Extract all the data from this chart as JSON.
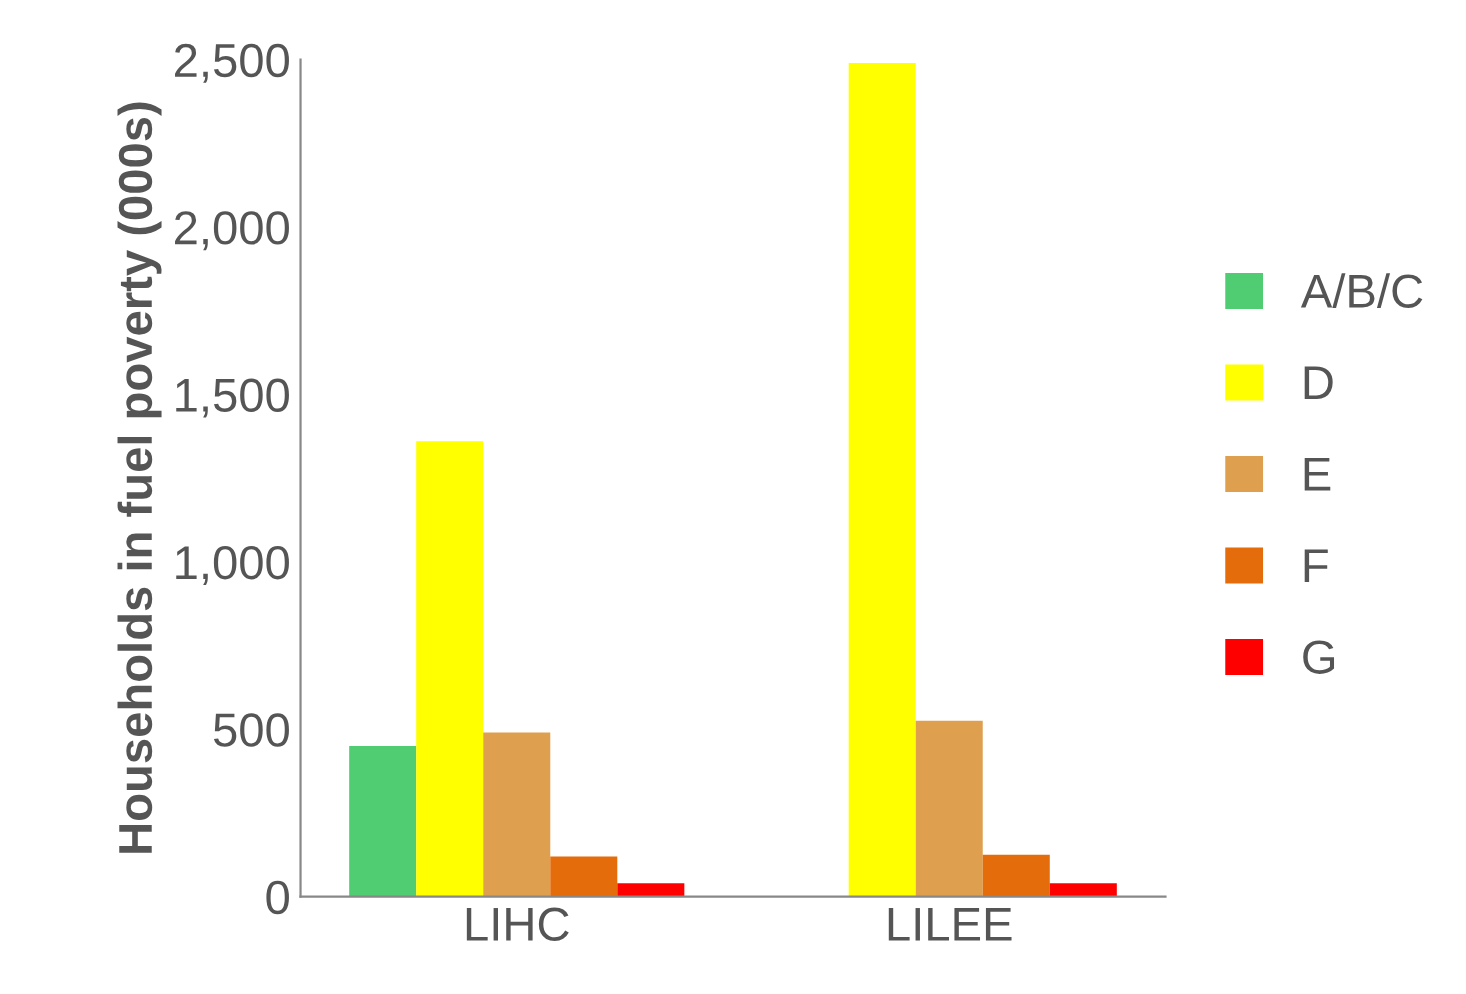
{
  "chart_data": {
    "type": "bar",
    "ylabel": "Households in fuel poverty (000s)",
    "categories": [
      "LIHC",
      "LILEE"
    ],
    "series": [
      {
        "name": "A/B/C",
        "color": "#50cd72",
        "values": [
          450,
          0
        ]
      },
      {
        "name": "D",
        "color": "#ffff00",
        "values": [
          1360,
          2490
        ]
      },
      {
        "name": "E",
        "color": "#dea04f",
        "values": [
          490,
          525
        ]
      },
      {
        "name": "F",
        "color": "#e46c0a",
        "values": [
          120,
          125
        ]
      },
      {
        "name": "G",
        "color": "#ff0000",
        "values": [
          40,
          40
        ]
      }
    ],
    "ylim": [
      0,
      2500
    ],
    "yticks": [
      0,
      {
        "value": 500,
        "label": "500"
      },
      {
        "value": 1000,
        "label": "1,000"
      },
      {
        "value": 1500,
        "label": "1,500"
      },
      {
        "value": 2000,
        "label": "2,000"
      },
      {
        "value": 2500,
        "label": "2,500"
      }
    ],
    "grid": false,
    "legend": "right"
  }
}
